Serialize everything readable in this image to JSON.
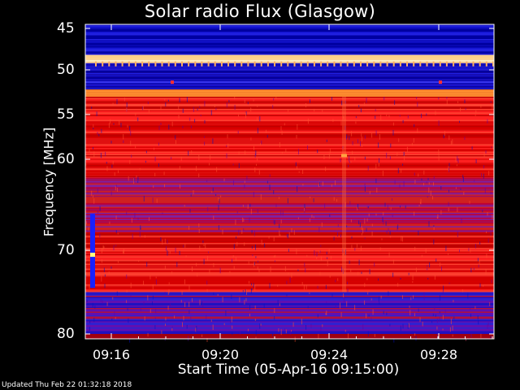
{
  "chart_data": {
    "type": "heatmap",
    "title": "Solar radio Flux (Glasgow)",
    "xlabel": "Start Time (05-Apr-16 09:15:00)",
    "ylabel": "Frequency [MHz]",
    "y_ticks": [
      "45",
      "50",
      "55",
      "60",
      "70",
      "80"
    ],
    "x_ticks": [
      "09:16",
      "09:20",
      "09:24",
      "09:28"
    ],
    "y_axis": "frequency (MHz), increasing downward",
    "x_axis": "time",
    "colormap": [
      "#0000a0",
      "#0020ff",
      "#7000c0",
      "#c00020",
      "#ff2010",
      "#ff9020",
      "#fff0c0"
    ],
    "bands": [
      {
        "freq_range": [
          44.5,
          48.2
        ],
        "level": "blue"
      },
      {
        "freq_range": [
          48.2,
          49.2
        ],
        "level": "bright-white"
      },
      {
        "freq_range": [
          49.2,
          52.2
        ],
        "level": "blue"
      },
      {
        "freq_range": [
          52.2,
          53.0
        ],
        "level": "bright-orange"
      },
      {
        "freq_range": [
          53.0,
          62.0
        ],
        "level": "red"
      },
      {
        "freq_range": [
          62.0,
          68.0
        ],
        "level": "purple-red"
      },
      {
        "freq_range": [
          68.0,
          75.0
        ],
        "level": "red"
      },
      {
        "freq_range": [
          75.0,
          80.0
        ],
        "level": "purple-blue"
      }
    ]
  },
  "footer": "Updated Thu Feb 22 01:32:18 2018"
}
